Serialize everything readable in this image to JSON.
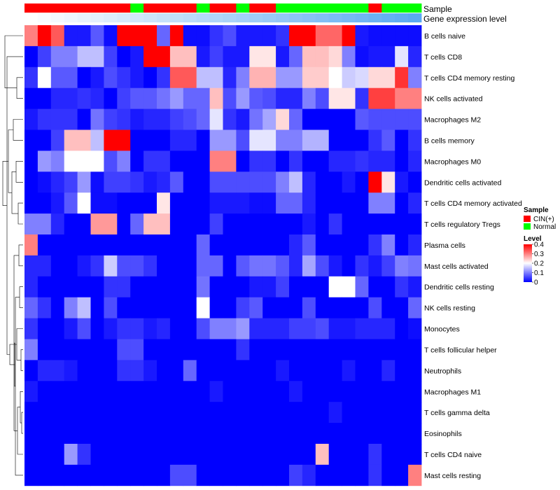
{
  "chart_data": {
    "type": "heatmap",
    "title": "",
    "xlabel": "",
    "ylabel": "",
    "row_labels": [
      "B cells naive",
      "T cells CD8",
      "T cells CD4 memory resting",
      "NK cells activated",
      "Macrophages M2",
      "B cells memory",
      "Macrophages M0",
      "Dendritic cells activated",
      "T cells CD4 memory activated",
      "T cells regulatory  Tregs",
      "Plasma cells",
      "Mast cells activated",
      "Dendritic cells resting",
      "NK cells resting",
      "Monocytes",
      "T cells follicular helper",
      "Neutrophils",
      "Macrophages M1",
      "T cells gamma delta",
      "Eosinophils",
      "T cells CD4 naive",
      "Mast cells resting"
    ],
    "annotation_labels": {
      "sample": "Sample",
      "gene": "Gene expression level"
    },
    "sample_groups": [
      "C",
      "C",
      "C",
      "C",
      "C",
      "C",
      "C",
      "C",
      "N",
      "C",
      "C",
      "C",
      "C",
      "N",
      "C",
      "C",
      "N",
      "C",
      "C",
      "N",
      "N",
      "N",
      "N",
      "N",
      "N",
      "N",
      "C",
      "N",
      "N",
      "N"
    ],
    "gene_expression_levels": [
      0.0,
      0.01,
      0.02,
      0.03,
      0.04,
      0.05,
      0.06,
      0.07,
      0.08,
      0.09,
      0.1,
      0.11,
      0.12,
      0.13,
      0.14,
      0.15,
      0.16,
      0.17,
      0.18,
      0.19,
      0.2,
      0.21,
      0.22,
      0.23,
      0.24,
      0.25,
      0.26,
      0.27,
      0.28,
      0.29
    ],
    "values": [
      [
        0.3,
        0.4,
        0.33,
        0.02,
        0.02,
        0.07,
        0.01,
        0.4,
        0.4,
        0.4,
        0.08,
        0.4,
        0.01,
        0.01,
        0.04,
        0.06,
        0.02,
        0.02,
        0.02,
        0.04,
        0.4,
        0.4,
        0.32,
        0.32,
        0.4,
        0.02,
        0.01,
        0.01,
        0.01,
        0.01
      ],
      [
        0.0,
        0.05,
        0.1,
        0.1,
        0.15,
        0.15,
        0.05,
        0.0,
        0.02,
        0.4,
        0.4,
        0.25,
        0.25,
        0.02,
        0.05,
        0.02,
        0.02,
        0.22,
        0.22,
        0.02,
        0.08,
        0.25,
        0.25,
        0.23,
        0.1,
        0.01,
        0.02,
        0.02,
        0.18,
        0.03
      ],
      [
        0.04,
        0.2,
        0.07,
        0.07,
        0.0,
        0.02,
        0.06,
        0.04,
        0.02,
        0.0,
        0.04,
        0.33,
        0.33,
        0.15,
        0.15,
        0.03,
        0.1,
        0.26,
        0.26,
        0.12,
        0.12,
        0.24,
        0.24,
        0.2,
        0.16,
        0.17,
        0.23,
        0.23,
        0.36,
        0.1
      ],
      [
        0.0,
        0.0,
        0.03,
        0.03,
        0.04,
        0.03,
        0.0,
        0.05,
        0.07,
        0.07,
        0.09,
        0.12,
        0.08,
        0.08,
        0.25,
        0.06,
        0.12,
        0.07,
        0.06,
        0.03,
        0.03,
        0.1,
        0.06,
        0.22,
        0.22,
        0.04,
        0.35,
        0.35,
        0.3,
        0.3
      ],
      [
        0.02,
        0.04,
        0.04,
        0.04,
        0.0,
        0.09,
        0.05,
        0.04,
        0.02,
        0.03,
        0.03,
        0.05,
        0.06,
        0.08,
        0.18,
        0.04,
        0.02,
        0.09,
        0.13,
        0.23,
        0.08,
        0.0,
        0.0,
        0.0,
        0.0,
        0.07,
        0.06,
        0.06,
        0.06,
        0.06
      ],
      [
        0.0,
        0.0,
        0.05,
        0.25,
        0.25,
        0.15,
        0.4,
        0.4,
        0.0,
        0.0,
        0.0,
        0.03,
        0.03,
        0.0,
        0.12,
        0.12,
        0.06,
        0.18,
        0.18,
        0.1,
        0.1,
        0.14,
        0.14,
        0.0,
        0.0,
        0.0,
        0.04,
        0.07,
        0.0,
        0.04
      ],
      [
        0.0,
        0.12,
        0.1,
        0.2,
        0.2,
        0.2,
        0.06,
        0.1,
        0.0,
        0.04,
        0.04,
        0.0,
        0.0,
        0.0,
        0.3,
        0.3,
        0.0,
        0.04,
        0.04,
        0.0,
        0.04,
        0.0,
        0.0,
        0.03,
        0.03,
        0.04,
        0.03,
        0.03,
        0.0,
        0.03
      ],
      [
        0.0,
        0.01,
        0.03,
        0.05,
        0.12,
        0.01,
        0.05,
        0.05,
        0.04,
        0.02,
        0.03,
        0.07,
        0.0,
        0.0,
        0.06,
        0.06,
        0.06,
        0.06,
        0.06,
        0.1,
        0.15,
        0.03,
        0.0,
        0.0,
        0.02,
        0.0,
        0.4,
        0.22,
        0.02,
        0.0
      ],
      [
        0.0,
        0.0,
        0.02,
        0.07,
        0.2,
        0.01,
        0.01,
        0.0,
        0.0,
        0.0,
        0.22,
        0.0,
        0.0,
        0.0,
        0.02,
        0.02,
        0.02,
        0.01,
        0.01,
        0.08,
        0.08,
        0.03,
        0.0,
        0.0,
        0.0,
        0.0,
        0.1,
        0.1,
        0.0,
        0.03
      ],
      [
        0.1,
        0.1,
        0.03,
        0.0,
        0.0,
        0.28,
        0.28,
        0.0,
        0.08,
        0.25,
        0.25,
        0.0,
        0.0,
        0.0,
        0.05,
        0.0,
        0.0,
        0.0,
        0.0,
        0.0,
        0.0,
        0.02,
        0.0,
        0.04,
        0.0,
        0.0,
        0.0,
        0.0,
        0.0,
        0.0
      ],
      [
        0.3,
        0.0,
        0.0,
        0.0,
        0.0,
        0.0,
        0.0,
        0.0,
        0.0,
        0.0,
        0.0,
        0.0,
        0.0,
        0.08,
        0.0,
        0.0,
        0.0,
        0.0,
        0.0,
        0.0,
        0.03,
        0.07,
        0.0,
        0.0,
        0.0,
        0.0,
        0.04,
        0.1,
        0.0,
        0.03
      ],
      [
        0.03,
        0.03,
        0.0,
        0.0,
        0.02,
        0.04,
        0.16,
        0.06,
        0.06,
        0.04,
        0.0,
        0.0,
        0.0,
        0.08,
        0.08,
        0.0,
        0.07,
        0.09,
        0.09,
        0.07,
        0.03,
        0.13,
        0.06,
        0.02,
        0.0,
        0.04,
        0.02,
        0.05,
        0.1,
        0.09
      ],
      [
        0.03,
        0.0,
        0.0,
        0.0,
        0.0,
        0.0,
        0.04,
        0.04,
        0.0,
        0.0,
        0.0,
        0.0,
        0.0,
        0.09,
        0.0,
        0.0,
        0.0,
        0.02,
        0.02,
        0.05,
        0.0,
        0.0,
        0.0,
        0.2,
        0.2,
        0.08,
        0.0,
        0.0,
        0.04,
        0.02
      ],
      [
        0.08,
        0.04,
        0.0,
        0.1,
        0.15,
        0.0,
        0.06,
        0.0,
        0.0,
        0.0,
        0.0,
        0.0,
        0.0,
        0.2,
        0.0,
        0.0,
        0.05,
        0.07,
        0.0,
        0.0,
        0.0,
        0.06,
        0.0,
        0.0,
        0.0,
        0.0,
        0.06,
        0.0,
        0.0,
        0.08
      ],
      [
        0.04,
        0.0,
        0.0,
        0.02,
        0.06,
        0.0,
        0.02,
        0.04,
        0.04,
        0.02,
        0.03,
        0.0,
        0.0,
        0.06,
        0.1,
        0.1,
        0.12,
        0.03,
        0.03,
        0.03,
        0.05,
        0.05,
        0.06,
        0.02,
        0.02,
        0.03,
        0.03,
        0.03,
        0.0,
        0.01
      ],
      [
        0.1,
        0.0,
        0.0,
        0.0,
        0.0,
        0.0,
        0.0,
        0.06,
        0.06,
        0.0,
        0.0,
        0.0,
        0.0,
        0.0,
        0.0,
        0.0,
        0.04,
        0.0,
        0.0,
        0.0,
        0.0,
        0.0,
        0.0,
        0.0,
        0.0,
        0.0,
        0.0,
        0.0,
        0.0,
        0.0
      ],
      [
        0.0,
        0.03,
        0.03,
        0.02,
        0.0,
        0.0,
        0.0,
        0.04,
        0.04,
        0.02,
        0.0,
        0.0,
        0.08,
        0.0,
        0.0,
        0.0,
        0.0,
        0.0,
        0.0,
        0.02,
        0.0,
        0.0,
        0.0,
        0.0,
        0.02,
        0.0,
        0.0,
        0.03,
        0.0,
        0.0
      ],
      [
        0.02,
        0.0,
        0.0,
        0.0,
        0.0,
        0.0,
        0.0,
        0.0,
        0.0,
        0.0,
        0.0,
        0.0,
        0.0,
        0.0,
        0.02,
        0.0,
        0.0,
        0.0,
        0.0,
        0.0,
        0.02,
        0.0,
        0.0,
        0.0,
        0.0,
        0.0,
        0.0,
        0.0,
        0.0,
        0.0
      ],
      [
        0.0,
        0.0,
        0.0,
        0.0,
        0.0,
        0.0,
        0.0,
        0.0,
        0.0,
        0.0,
        0.0,
        0.0,
        0.0,
        0.0,
        0.0,
        0.0,
        0.0,
        0.0,
        0.0,
        0.0,
        0.0,
        0.0,
        0.0,
        0.02,
        0.0,
        0.0,
        0.0,
        0.0,
        0.0,
        0.0
      ],
      [
        0.0,
        0.0,
        0.0,
        0.0,
        0.0,
        0.0,
        0.0,
        0.0,
        0.0,
        0.0,
        0.0,
        0.0,
        0.0,
        0.0,
        0.0,
        0.0,
        0.0,
        0.0,
        0.0,
        0.0,
        0.0,
        0.0,
        0.0,
        0.0,
        0.0,
        0.0,
        0.0,
        0.0,
        0.0,
        0.0
      ],
      [
        0.0,
        0.0,
        0.0,
        0.12,
        0.04,
        0.0,
        0.0,
        0.0,
        0.0,
        0.0,
        0.0,
        0.0,
        0.0,
        0.0,
        0.0,
        0.0,
        0.0,
        0.0,
        0.0,
        0.0,
        0.0,
        0.0,
        0.25,
        0.0,
        0.0,
        0.0,
        0.04,
        0.0,
        0.0,
        0.0
      ],
      [
        0.0,
        0.0,
        0.0,
        0.0,
        0.0,
        0.0,
        0.0,
        0.0,
        0.0,
        0.0,
        0.0,
        0.06,
        0.06,
        0.0,
        0.0,
        0.0,
        0.0,
        0.0,
        0.0,
        0.0,
        0.05,
        0.03,
        0.0,
        0.0,
        0.0,
        0.0,
        0.04,
        0.0,
        0.0,
        0.3
      ]
    ],
    "color_scale": {
      "min": 0,
      "mid": 0.2,
      "max": 0.4,
      "low": "#0000ff",
      "midColor": "#ffffff",
      "high": "#ff0000"
    },
    "legend": {
      "placement": "right",
      "sample_title": "Sample",
      "sample_items": [
        {
          "key": "C",
          "label": "CIN(+)",
          "color": "#ff0000"
        },
        {
          "key": "N",
          "label": "Normal",
          "color": "#00ff00"
        }
      ],
      "level_title": "Level",
      "level_ticks": [
        "0.4",
        "0.3",
        "0.2",
        "0.1",
        "0"
      ],
      "level_tick_values": [
        0.4,
        0.3,
        0.2,
        0.1,
        0.0
      ]
    }
  }
}
